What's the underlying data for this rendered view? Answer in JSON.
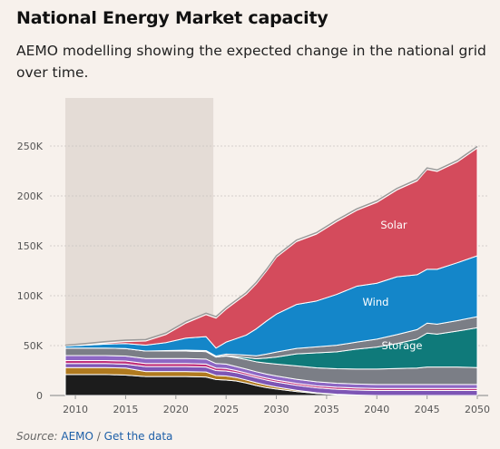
{
  "header": {
    "title": "National Energy Market capacity",
    "subtitle": "AEMO modelling showing the expected change in the national grid over time."
  },
  "footer": {
    "source_label": "Source:",
    "source_name": "AEMO",
    "separator": "/",
    "data_link": "Get the data"
  },
  "colors": {
    "background": "#f7f1ec",
    "historical_shade": "#e4dcd6",
    "gridline": "#c9c4c0",
    "coal_black": "#1c1c1c",
    "coal_brown": "#b07a1f",
    "gas_purple": "#7d55b5",
    "gas_magenta": "#c0317a",
    "gas_purple_light": "#8d67c4",
    "hydro_grey": "#7b7e86",
    "storage_teal": "#0f7a7a",
    "wind_blue": "#1486c9",
    "solar_red": "#d44b5c",
    "outline": "#ffffff"
  },
  "chart_data": {
    "type": "area",
    "stacked": true,
    "x": [
      2009,
      2011,
      2013,
      2015,
      2017,
      2019,
      2021,
      2023,
      2024,
      2025,
      2026,
      2027,
      2028,
      2029,
      2030,
      2032,
      2034,
      2036,
      2038,
      2040,
      2042,
      2044,
      2045,
      2046,
      2048,
      2050
    ],
    "xlim": [
      2009,
      2050
    ],
    "ylim": [
      0,
      300000
    ],
    "x_ticks": [
      "2010",
      "2015",
      "2020",
      "2025",
      "2030",
      "2035",
      "2040",
      "2045",
      "2050"
    ],
    "y_ticks": [
      "0",
      "50K",
      "100K",
      "150K",
      "200K",
      "250K"
    ],
    "grid": true,
    "historical_period": [
      2009,
      2024
    ],
    "series": [
      {
        "name": "",
        "values": [
          21000,
          21000,
          21000,
          20500,
          19000,
          19000,
          19000,
          18500,
          16000,
          15500,
          14500,
          12500,
          10000,
          8000,
          6500,
          4000,
          2000,
          1000,
          500,
          0,
          0,
          0,
          0,
          0,
          0,
          0
        ]
      },
      {
        "name": "",
        "values": [
          7000,
          7000,
          7000,
          7000,
          5000,
          5000,
          5000,
          5000,
          4000,
          4000,
          3500,
          3000,
          2800,
          2500,
          2000,
          1200,
          700,
          300,
          0,
          0,
          0,
          0,
          0,
          0,
          0,
          0
        ]
      },
      {
        "name": "",
        "values": [
          4000,
          4000,
          4000,
          4000,
          5000,
          5000,
          5000,
          5000,
          5000,
          5000,
          5000,
          5000,
          5000,
          5000,
          5000,
          5000,
          5000,
          5000,
          5000,
          5000,
          5000,
          5000,
          5000,
          5000,
          5000,
          5000
        ]
      },
      {
        "name": "",
        "values": [
          3000,
          3000,
          3000,
          3000,
          3000,
          3000,
          3000,
          3000,
          2500,
          2500,
          2000,
          2000,
          2000,
          2000,
          2000,
          2000,
          2000,
          2000,
          2000,
          2000,
          2000,
          2000,
          2000,
          2000,
          2000,
          2000
        ]
      },
      {
        "name": "",
        "values": [
          5000,
          5000,
          5000,
          5000,
          5000,
          5000,
          5000,
          5000,
          4500,
          4500,
          4000,
          4000,
          4000,
          4000,
          4000,
          4000,
          4000,
          4000,
          4000,
          4000,
          4000,
          4000,
          4000,
          4000,
          4000,
          4000
        ]
      },
      {
        "name": "",
        "values": [
          7500,
          7500,
          7500,
          7500,
          7500,
          7500,
          7500,
          7500,
          6500,
          8000,
          9000,
          9500,
          10000,
          11000,
          12000,
          13500,
          14000,
          14500,
          15000,
          15500,
          16000,
          16500,
          17500,
          17500,
          17500,
          17000
        ]
      },
      {
        "name": "Storage",
        "values": [
          0,
          0,
          0,
          0,
          0,
          0,
          0,
          0,
          0,
          500,
          1000,
          2000,
          3000,
          5000,
          7000,
          12000,
          15000,
          17000,
          20000,
          22000,
          25000,
          29000,
          34000,
          33000,
          36000,
          40000
        ]
      },
      {
        "name": "",
        "values": [
          0,
          0,
          0,
          0,
          0,
          500,
          1000,
          1000,
          1000,
          1500,
          2000,
          2500,
          3000,
          4000,
          5000,
          5500,
          6000,
          6500,
          7000,
          8000,
          9000,
          9500,
          10000,
          10000,
          10500,
          11000
        ]
      },
      {
        "name": "Wind",
        "values": [
          2000,
          3000,
          4000,
          5000,
          6000,
          8000,
          12000,
          14000,
          8000,
          12000,
          16000,
          20000,
          27000,
          33000,
          38000,
          44000,
          46000,
          51000,
          56000,
          56000,
          58000,
          55000,
          54000,
          55000,
          58000,
          61000
        ]
      },
      {
        "name": "Solar",
        "values": [
          0,
          0,
          1000,
          2000,
          4000,
          8000,
          15000,
          22000,
          30000,
          33000,
          37000,
          41000,
          45000,
          50000,
          57000,
          63000,
          67000,
          73000,
          76000,
          81000,
          87000,
          94000,
          100000,
          98000,
          101000,
          108000
        ]
      }
    ]
  }
}
